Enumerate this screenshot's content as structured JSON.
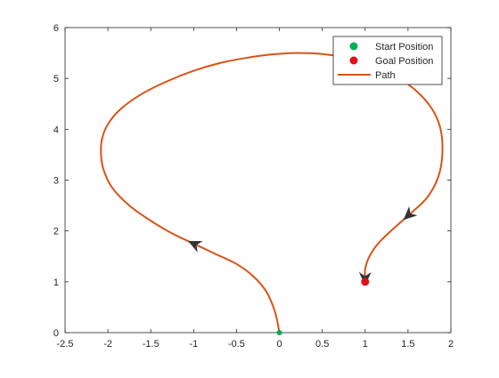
{
  "chart_data": {
    "type": "line",
    "xlim": [
      -2.5,
      2
    ],
    "ylim": [
      0,
      6
    ],
    "xticks": [
      "-2.5",
      "-2",
      "-1.5",
      "-1",
      "-0.5",
      "0",
      "0.5",
      "1",
      "1.5",
      "2"
    ],
    "yticks": [
      "0",
      "1",
      "2",
      "3",
      "4",
      "5",
      "6"
    ],
    "grid": false,
    "legend_position": "top-right",
    "legend": [
      "Start Position",
      "Goal Position",
      "Path"
    ],
    "start": {
      "name": "Start Position",
      "x": 0,
      "y": 0,
      "color": "#00b050"
    },
    "goal": {
      "name": "Goal Position",
      "x": 1,
      "y": 1,
      "color": "#e0101a"
    },
    "series": [
      {
        "name": "Path",
        "color": "#d95319",
        "x": [
          0,
          -0.05,
          -0.15,
          -0.3,
          -0.5,
          -0.75,
          -1.0,
          -1.25,
          -1.5,
          -1.75,
          -1.95,
          -2.05,
          -2.08,
          -2.07,
          -2.0,
          -1.85,
          -1.6,
          -1.3,
          -1.0,
          -0.7,
          -0.4,
          -0.1,
          0.2,
          0.5,
          0.8,
          1.1,
          1.35,
          1.6,
          1.78,
          1.88,
          1.9,
          1.85,
          1.72,
          1.5,
          1.3,
          1.15,
          1.05,
          1.0,
          1.0
        ],
        "y": [
          0,
          0.4,
          0.8,
          1.1,
          1.35,
          1.55,
          1.75,
          1.95,
          2.2,
          2.5,
          2.85,
          3.2,
          3.5,
          3.8,
          4.1,
          4.4,
          4.7,
          4.95,
          5.15,
          5.3,
          5.4,
          5.47,
          5.5,
          5.48,
          5.4,
          5.25,
          5.05,
          4.75,
          4.4,
          4.0,
          3.5,
          3.05,
          2.65,
          2.3,
          2.0,
          1.75,
          1.5,
          1.25,
          1.05
        ]
      }
    ],
    "arrows": [
      {
        "x": -1.0,
        "y": 1.75
      },
      {
        "x": 1.5,
        "y": 2.3
      },
      {
        "x": 1.0,
        "y": 1.05
      }
    ]
  }
}
